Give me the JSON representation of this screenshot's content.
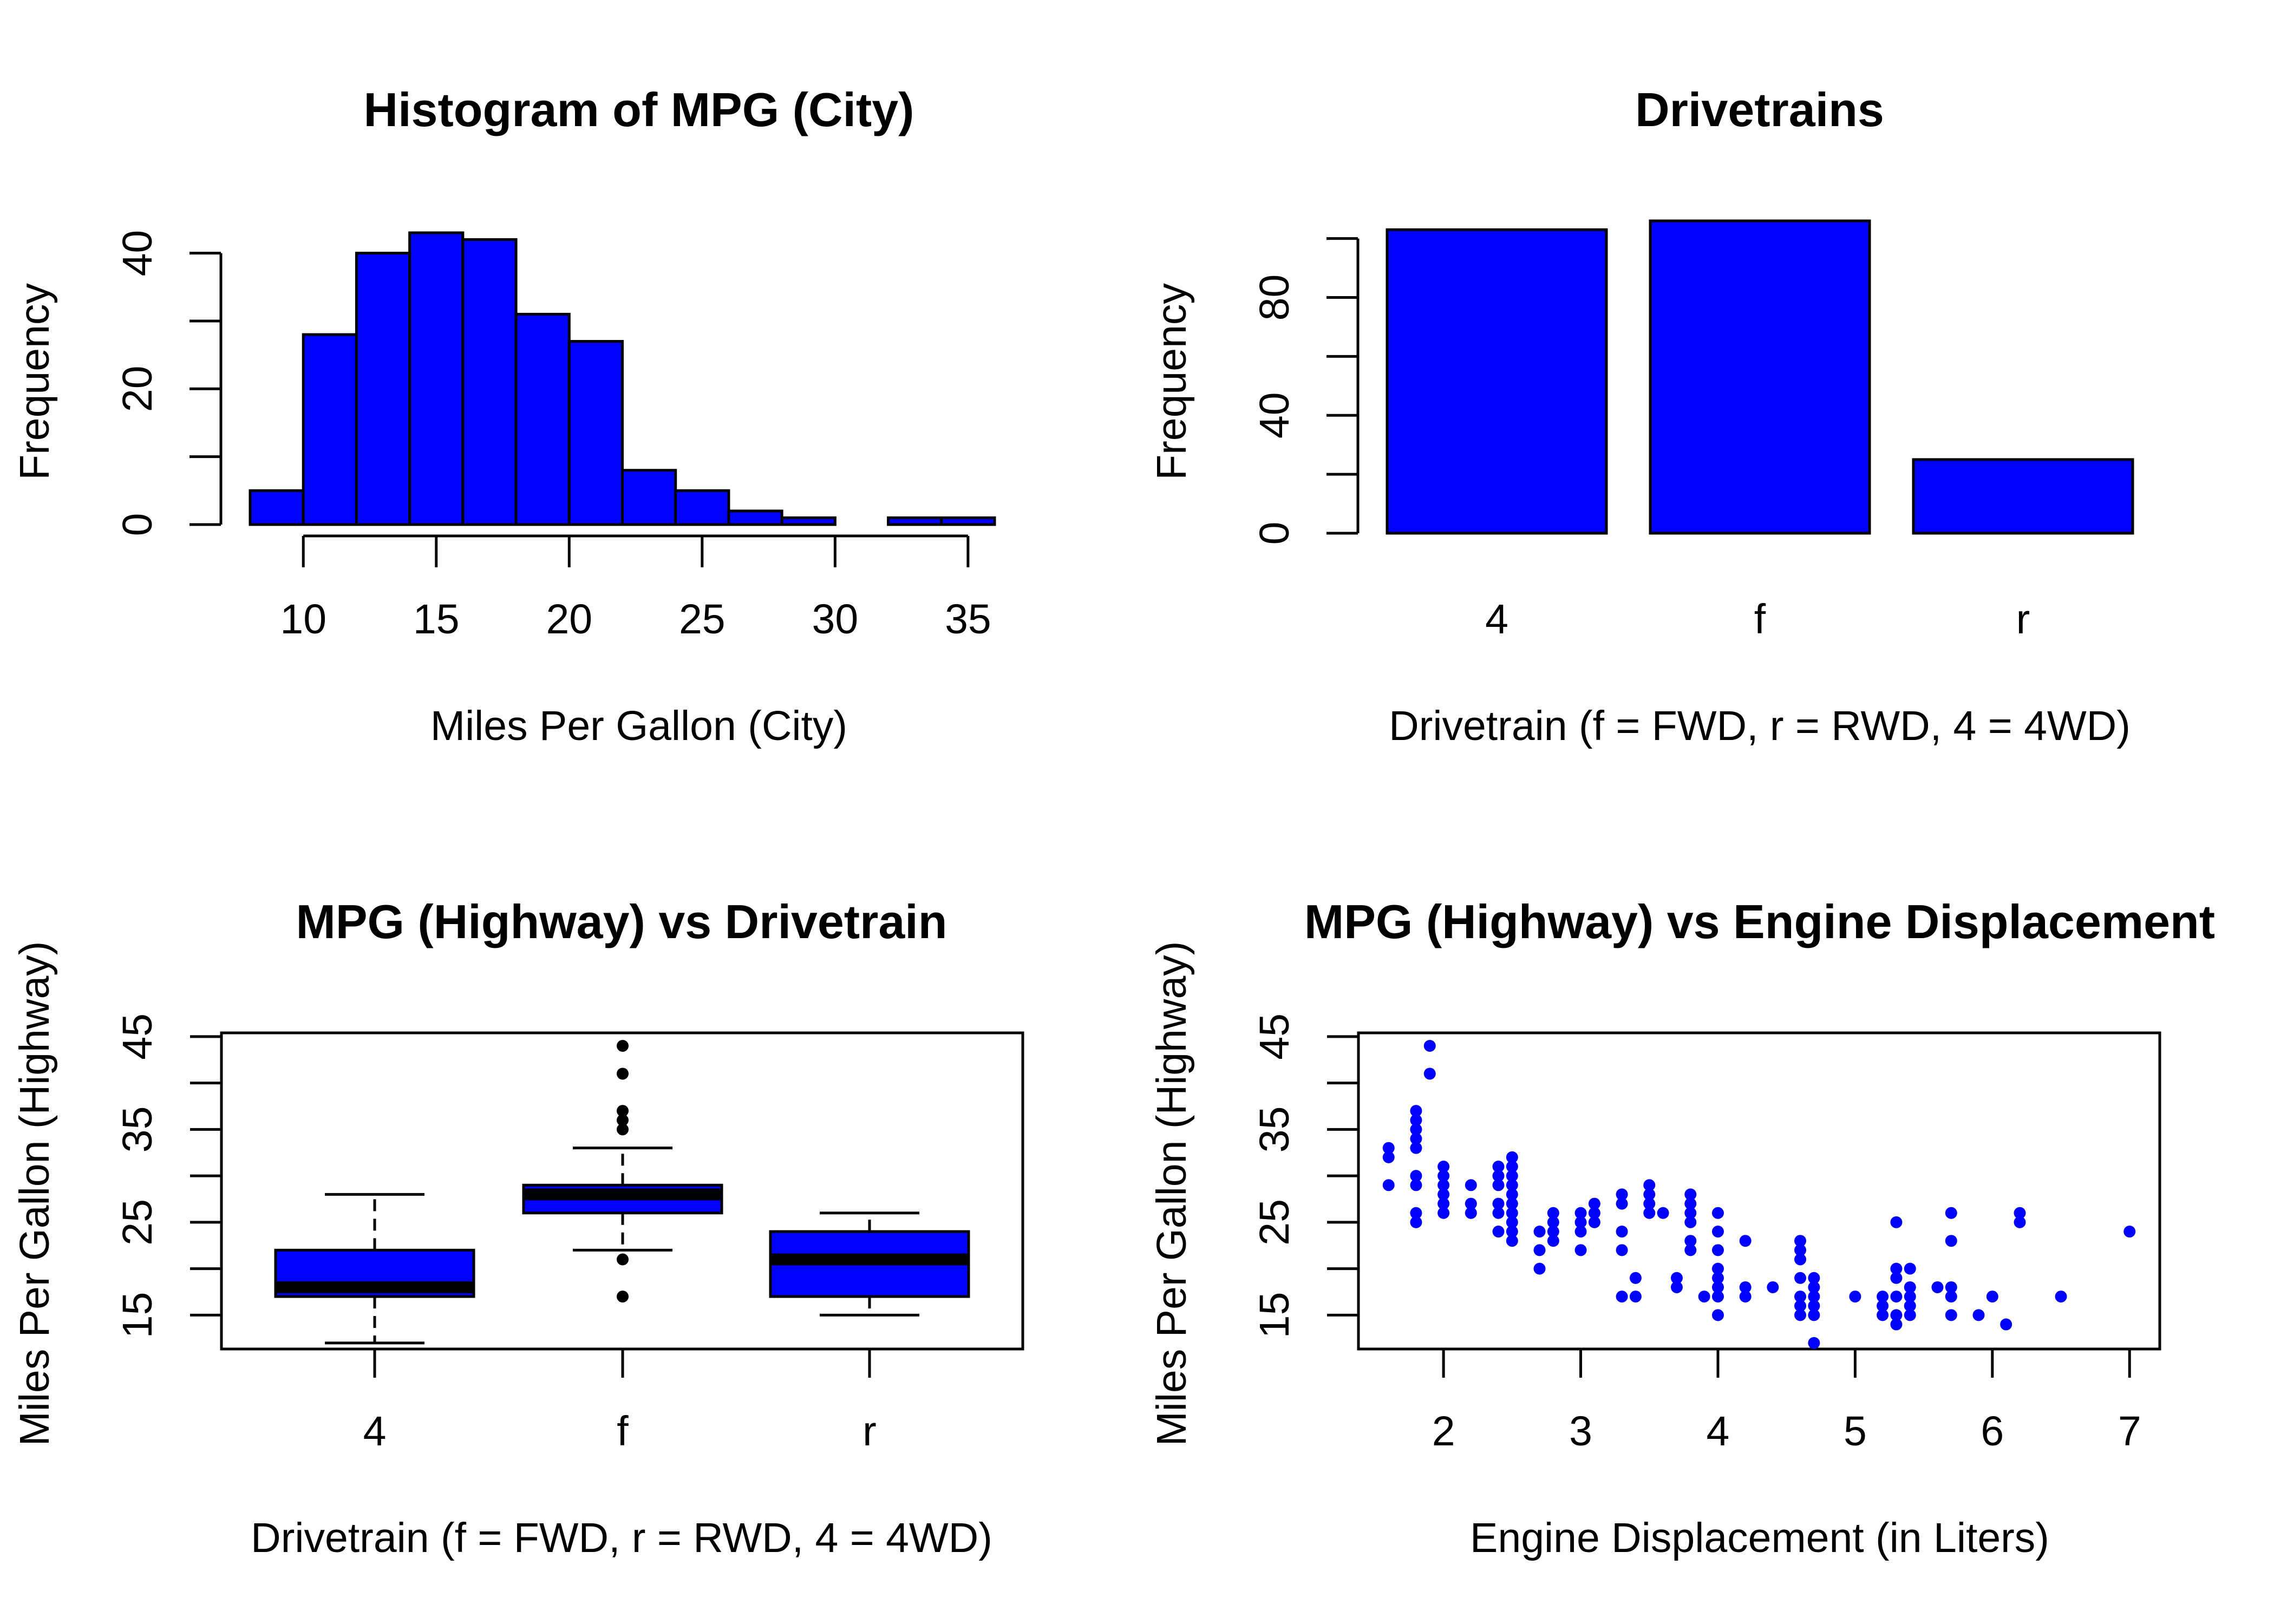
{
  "chart_data": [
    {
      "id": "hist",
      "type": "bar",
      "title": "Histogram of MPG (City)",
      "xlabel": "Miles Per Gallon (City)",
      "ylabel": "Frequency",
      "bins": [
        [
          8,
          10
        ],
        [
          10,
          12
        ],
        [
          12,
          14
        ],
        [
          14,
          16
        ],
        [
          16,
          18
        ],
        [
          18,
          20
        ],
        [
          20,
          22
        ],
        [
          22,
          24
        ],
        [
          24,
          26
        ],
        [
          26,
          28
        ],
        [
          28,
          30
        ],
        [
          30,
          32
        ],
        [
          32,
          34
        ],
        [
          34,
          36
        ]
      ],
      "values": [
        5,
        28,
        40,
        43,
        42,
        31,
        27,
        8,
        5,
        2,
        1,
        0,
        1,
        1
      ],
      "xlim": [
        8,
        36
      ],
      "ylim": [
        0,
        43
      ],
      "xticks": [
        10,
        15,
        20,
        25,
        30,
        35
      ],
      "yticks": [
        0,
        10,
        20,
        30,
        40
      ],
      "yticklabels": [
        "0",
        "",
        "20",
        "",
        "40"
      ]
    },
    {
      "id": "drive",
      "type": "bar",
      "title": "Drivetrains",
      "xlabel": "Drivetrain (f = FWD, r = RWD, 4 = 4WD)",
      "ylabel": "Frequency",
      "categories": [
        "4",
        "f",
        "r"
      ],
      "values": [
        103,
        106,
        25
      ],
      "ylim": [
        0,
        106
      ],
      "yticks": [
        0,
        20,
        40,
        60,
        80,
        100
      ],
      "yticklabels": [
        "0",
        "",
        "40",
        "",
        "80",
        ""
      ]
    },
    {
      "id": "box",
      "type": "box",
      "title": "MPG (Highway) vs Drivetrain",
      "xlabel": "Drivetrain (f = FWD, r = RWD, 4 = 4WD)",
      "ylabel": "Miles Per Gallon (Highway)",
      "categories": [
        "4",
        "f",
        "r"
      ],
      "boxes": [
        {
          "min": 12,
          "q1": 17,
          "median": 18,
          "q3": 22,
          "max": 28,
          "outliers": []
        },
        {
          "min": 22,
          "q1": 26,
          "median": 28,
          "q3": 29,
          "max": 33,
          "outliers": [
            17,
            21,
            35,
            36,
            37,
            41,
            44
          ]
        },
        {
          "min": 15,
          "q1": 17,
          "median": 21,
          "q3": 24,
          "max": 26,
          "outliers": []
        }
      ],
      "ylim": [
        11.35,
        45.4
      ],
      "yticks": [
        15,
        20,
        25,
        30,
        35,
        40,
        45
      ],
      "yticklabels": [
        "15",
        "",
        "25",
        "",
        "35",
        "",
        "45"
      ]
    },
    {
      "id": "scatter",
      "type": "scatter",
      "title": "MPG (Highway) vs Engine Displacement",
      "xlabel": "Engine Displacement (in Liters)",
      "ylabel": "Miles Per Gallon (Highway)",
      "xlim": [
        1.38,
        7.22
      ],
      "ylim": [
        11.35,
        45.4
      ],
      "xticks": [
        2,
        3,
        4,
        5,
        6,
        7
      ],
      "yticks": [
        15,
        20,
        25,
        30,
        35,
        40,
        45
      ],
      "yticklabels": [
        "15",
        "",
        "25",
        "",
        "35",
        "",
        "45"
      ],
      "points": [
        [
          1.6,
          33
        ],
        [
          1.6,
          32
        ],
        [
          1.6,
          29
        ],
        [
          1.8,
          29
        ],
        [
          1.8,
          30
        ],
        [
          1.8,
          26
        ],
        [
          1.8,
          25
        ],
        [
          1.8,
          33
        ],
        [
          1.8,
          34
        ],
        [
          1.8,
          35
        ],
        [
          1.8,
          36
        ],
        [
          1.8,
          37
        ],
        [
          1.9,
          44
        ],
        [
          1.9,
          41
        ],
        [
          2.0,
          31
        ],
        [
          2.0,
          30
        ],
        [
          2.0,
          29
        ],
        [
          2.0,
          28
        ],
        [
          2.0,
          27
        ],
        [
          2.0,
          26
        ],
        [
          2.2,
          29
        ],
        [
          2.2,
          27
        ],
        [
          2.2,
          26
        ],
        [
          2.4,
          31
        ],
        [
          2.4,
          30
        ],
        [
          2.4,
          29
        ],
        [
          2.4,
          27
        ],
        [
          2.4,
          26
        ],
        [
          2.4,
          24
        ],
        [
          2.5,
          32
        ],
        [
          2.5,
          31
        ],
        [
          2.5,
          30
        ],
        [
          2.5,
          29
        ],
        [
          2.5,
          28
        ],
        [
          2.5,
          27
        ],
        [
          2.5,
          26
        ],
        [
          2.5,
          25
        ],
        [
          2.5,
          24
        ],
        [
          2.5,
          23
        ],
        [
          2.7,
          24
        ],
        [
          2.7,
          22
        ],
        [
          2.7,
          20
        ],
        [
          2.8,
          26
        ],
        [
          2.8,
          25
        ],
        [
          2.8,
          24
        ],
        [
          2.8,
          23
        ],
        [
          3.0,
          26
        ],
        [
          3.0,
          25
        ],
        [
          3.0,
          24
        ],
        [
          3.0,
          22
        ],
        [
          3.1,
          27
        ],
        [
          3.1,
          26
        ],
        [
          3.1,
          25
        ],
        [
          3.3,
          28
        ],
        [
          3.3,
          27
        ],
        [
          3.3,
          24
        ],
        [
          3.3,
          22
        ],
        [
          3.3,
          17
        ],
        [
          3.4,
          19
        ],
        [
          3.4,
          17
        ],
        [
          3.5,
          29
        ],
        [
          3.5,
          28
        ],
        [
          3.5,
          27
        ],
        [
          3.5,
          26
        ],
        [
          3.6,
          26
        ],
        [
          3.7,
          19
        ],
        [
          3.7,
          18
        ],
        [
          3.8,
          28
        ],
        [
          3.8,
          27
        ],
        [
          3.8,
          26
        ],
        [
          3.8,
          25
        ],
        [
          3.8,
          23
        ],
        [
          3.8,
          22
        ],
        [
          3.9,
          17
        ],
        [
          4.0,
          26
        ],
        [
          4.0,
          24
        ],
        [
          4.0,
          22
        ],
        [
          4.0,
          20
        ],
        [
          4.0,
          19
        ],
        [
          4.0,
          18
        ],
        [
          4.0,
          17
        ],
        [
          4.0,
          15
        ],
        [
          4.2,
          23
        ],
        [
          4.2,
          18
        ],
        [
          4.2,
          17
        ],
        [
          4.4,
          18
        ],
        [
          4.6,
          23
        ],
        [
          4.6,
          22
        ],
        [
          4.6,
          21
        ],
        [
          4.6,
          19
        ],
        [
          4.6,
          17
        ],
        [
          4.6,
          16
        ],
        [
          4.6,
          15
        ],
        [
          4.7,
          19
        ],
        [
          4.7,
          18
        ],
        [
          4.7,
          17
        ],
        [
          4.7,
          16
        ],
        [
          4.7,
          15
        ],
        [
          4.7,
          12
        ],
        [
          5.0,
          17
        ],
        [
          5.2,
          17
        ],
        [
          5.2,
          16
        ],
        [
          5.2,
          15
        ],
        [
          5.3,
          25
        ],
        [
          5.3,
          20
        ],
        [
          5.3,
          19
        ],
        [
          5.3,
          17
        ],
        [
          5.3,
          15
        ],
        [
          5.3,
          14
        ],
        [
          5.4,
          20
        ],
        [
          5.4,
          18
        ],
        [
          5.4,
          17
        ],
        [
          5.4,
          16
        ],
        [
          5.4,
          15
        ],
        [
          5.6,
          18
        ],
        [
          5.7,
          26
        ],
        [
          5.7,
          23
        ],
        [
          5.7,
          18
        ],
        [
          5.7,
          17
        ],
        [
          5.7,
          15
        ],
        [
          5.9,
          15
        ],
        [
          6.0,
          17
        ],
        [
          6.1,
          14
        ],
        [
          6.2,
          26
        ],
        [
          6.2,
          25
        ],
        [
          6.5,
          17
        ],
        [
          7.0,
          24
        ]
      ]
    }
  ]
}
